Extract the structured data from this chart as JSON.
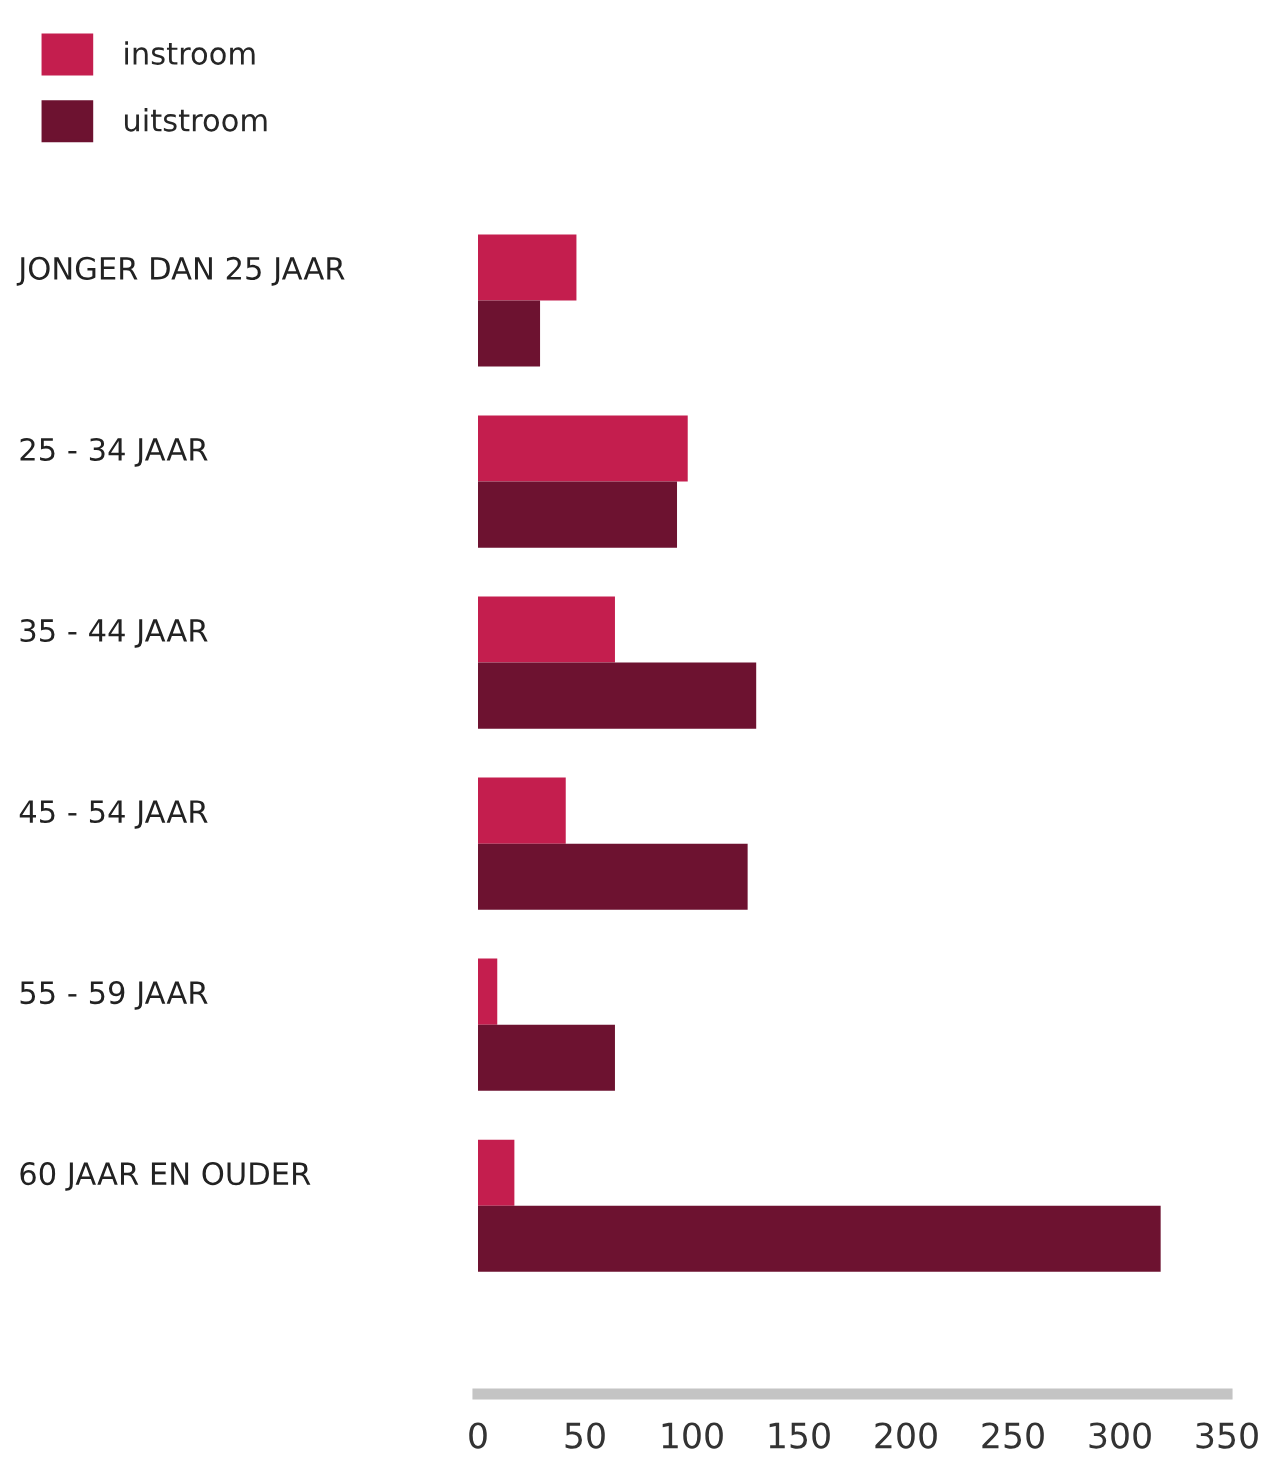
{
  "chart_data": {
    "type": "bar",
    "orientation": "horizontal",
    "categories": [
      "JONGER DAN 25 JAAR",
      "25 - 34 JAAR",
      "35 - 44 JAAR",
      "45 - 54 JAAR",
      "55 - 59 JAAR",
      "60 JAAR EN OUDER"
    ],
    "series": [
      {
        "name": "instroom",
        "color": "#c41e4e",
        "values": [
          46,
          98,
          64,
          41,
          9,
          17
        ]
      },
      {
        "name": "uitstroom",
        "color": "#6d1230",
        "values": [
          29,
          93,
          130,
          126,
          64,
          319
        ]
      }
    ],
    "xlim": [
      0,
      350
    ],
    "xticks": [
      0,
      50,
      100,
      150,
      200,
      250,
      300,
      350
    ],
    "grid": false,
    "legend": "top left"
  }
}
